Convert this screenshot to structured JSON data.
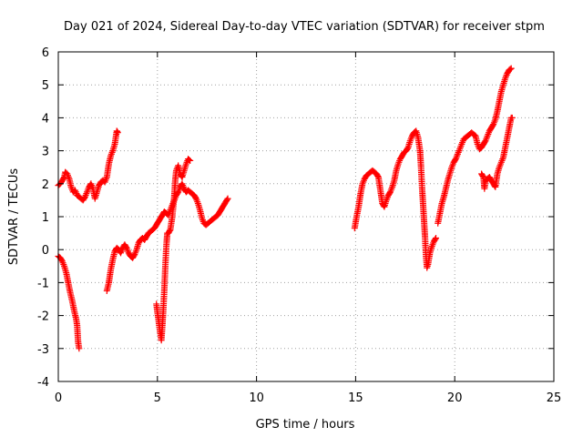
{
  "chart_data": {
    "type": "scatter",
    "title": "Day 021 of 2024, Sidereal Day-to-day VTEC variation (SDTVAR) for receiver stpm",
    "xlabel": "GPS time / hours",
    "ylabel": "SDTVAR / TECUs",
    "xlim": [
      0,
      25
    ],
    "ylim": [
      -4,
      6
    ],
    "xticks": [
      "0",
      "5",
      "10",
      "15",
      "20",
      "25"
    ],
    "yticks": [
      "-4",
      "-3",
      "-2",
      "-1",
      "0",
      "1",
      "2",
      "3",
      "4",
      "5",
      "6"
    ],
    "grid": true,
    "marker": "+",
    "color": "#ff0000",
    "series": [
      {
        "segments": [
          [
            [
              0.0,
              1.95
            ],
            [
              0.1,
              2.0
            ],
            [
              0.2,
              2.1
            ],
            [
              0.3,
              2.2
            ],
            [
              0.35,
              2.35
            ],
            [
              0.45,
              2.3
            ],
            [
              0.55,
              2.15
            ],
            [
              0.65,
              1.9
            ],
            [
              0.75,
              1.75
            ],
            [
              0.85,
              1.8
            ],
            [
              0.95,
              1.65
            ],
            [
              1.05,
              1.6
            ],
            [
              1.15,
              1.55
            ],
            [
              1.25,
              1.5
            ],
            [
              1.35,
              1.6
            ],
            [
              1.45,
              1.75
            ],
            [
              1.55,
              1.9
            ],
            [
              1.65,
              2.0
            ],
            [
              1.75,
              1.85
            ],
            [
              1.85,
              1.55
            ],
            [
              1.95,
              1.75
            ],
            [
              2.05,
              1.95
            ],
            [
              2.15,
              2.05
            ],
            [
              2.25,
              2.1
            ],
            [
              2.35,
              2.05
            ],
            [
              2.45,
              2.2
            ],
            [
              2.55,
              2.6
            ],
            [
              2.65,
              2.85
            ],
            [
              2.75,
              3.0
            ],
            [
              2.85,
              3.2
            ],
            [
              2.9,
              3.4
            ],
            [
              2.95,
              3.6
            ],
            [
              3.0,
              3.55
            ]
          ],
          [
            [
              0.0,
              -0.2
            ],
            [
              0.1,
              -0.25
            ],
            [
              0.2,
              -0.35
            ],
            [
              0.3,
              -0.5
            ],
            [
              0.4,
              -0.7
            ],
            [
              0.5,
              -1.0
            ],
            [
              0.6,
              -1.3
            ],
            [
              0.7,
              -1.55
            ],
            [
              0.8,
              -1.85
            ],
            [
              0.9,
              -2.1
            ],
            [
              0.95,
              -2.3
            ],
            [
              1.0,
              -2.8
            ],
            [
              1.05,
              -3.0
            ]
          ],
          [
            [
              2.45,
              -1.25
            ],
            [
              2.55,
              -1.0
            ],
            [
              2.65,
              -0.6
            ],
            [
              2.75,
              -0.3
            ],
            [
              2.85,
              -0.05
            ],
            [
              2.95,
              0.05
            ],
            [
              3.05,
              0.0
            ],
            [
              3.15,
              -0.1
            ],
            [
              3.25,
              0.05
            ],
            [
              3.35,
              0.15
            ],
            [
              3.45,
              0.05
            ],
            [
              3.55,
              -0.1
            ],
            [
              3.65,
              -0.2
            ],
            [
              3.75,
              -0.25
            ],
            [
              3.85,
              -0.15
            ],
            [
              3.95,
              0.0
            ],
            [
              4.05,
              0.2
            ],
            [
              4.15,
              0.3
            ],
            [
              4.25,
              0.35
            ],
            [
              4.35,
              0.3
            ],
            [
              4.45,
              0.4
            ],
            [
              4.55,
              0.5
            ],
            [
              4.65,
              0.55
            ],
            [
              4.75,
              0.6
            ],
            [
              4.85,
              0.65
            ],
            [
              4.95,
              0.75
            ],
            [
              5.05,
              0.85
            ],
            [
              5.15,
              0.95
            ],
            [
              5.25,
              1.05
            ],
            [
              5.35,
              1.15
            ],
            [
              5.45,
              1.1
            ],
            [
              5.55,
              1.05
            ],
            [
              5.65,
              1.2
            ],
            [
              5.75,
              1.35
            ],
            [
              5.85,
              1.5
            ],
            [
              5.95,
              1.65
            ],
            [
              6.05,
              1.75
            ],
            [
              6.15,
              1.9
            ],
            [
              6.25,
              2.0
            ],
            [
              6.35,
              1.85
            ],
            [
              6.45,
              1.75
            ],
            [
              6.55,
              1.8
            ],
            [
              6.65,
              1.75
            ],
            [
              6.75,
              1.7
            ],
            [
              6.85,
              1.65
            ],
            [
              6.95,
              1.55
            ],
            [
              7.05,
              1.4
            ],
            [
              7.15,
              1.2
            ],
            [
              7.25,
              0.95
            ],
            [
              7.35,
              0.8
            ],
            [
              7.45,
              0.75
            ],
            [
              7.55,
              0.8
            ],
            [
              7.65,
              0.85
            ],
            [
              7.75,
              0.9
            ],
            [
              7.85,
              0.95
            ],
            [
              7.95,
              1.0
            ],
            [
              8.05,
              1.05
            ],
            [
              8.15,
              1.15
            ],
            [
              8.25,
              1.25
            ],
            [
              8.35,
              1.35
            ],
            [
              8.45,
              1.45
            ],
            [
              8.55,
              1.55
            ]
          ],
          [
            [
              4.95,
              -1.65
            ],
            [
              5.0,
              -1.9
            ],
            [
              5.05,
              -2.1
            ],
            [
              5.1,
              -2.35
            ],
            [
              5.15,
              -2.55
            ],
            [
              5.2,
              -2.75
            ],
            [
              5.25,
              -2.3
            ],
            [
              5.3,
              -1.8
            ],
            [
              5.35,
              -1.2
            ],
            [
              5.4,
              -0.5
            ],
            [
              5.45,
              0.1
            ],
            [
              5.5,
              0.5
            ],
            [
              5.55,
              0.5
            ],
            [
              5.65,
              0.6
            ],
            [
              5.75,
              1.0
            ],
            [
              5.85,
              1.6
            ],
            [
              5.9,
              2.1
            ],
            [
              5.95,
              2.4
            ],
            [
              6.05,
              2.55
            ],
            [
              6.15,
              2.3
            ],
            [
              6.25,
              2.2
            ],
            [
              6.35,
              2.4
            ],
            [
              6.45,
              2.6
            ],
            [
              6.55,
              2.75
            ],
            [
              6.65,
              2.7
            ]
          ],
          [
            [
              14.95,
              0.65
            ],
            [
              15.05,
              1.0
            ],
            [
              15.15,
              1.3
            ],
            [
              15.25,
              1.7
            ],
            [
              15.35,
              2.0
            ],
            [
              15.45,
              2.15
            ],
            [
              15.55,
              2.25
            ],
            [
              15.65,
              2.3
            ],
            [
              15.75,
              2.35
            ],
            [
              15.85,
              2.4
            ],
            [
              15.95,
              2.35
            ],
            [
              16.05,
              2.3
            ],
            [
              16.15,
              2.2
            ],
            [
              16.25,
              1.8
            ],
            [
              16.35,
              1.4
            ],
            [
              16.45,
              1.3
            ],
            [
              16.55,
              1.5
            ],
            [
              16.65,
              1.65
            ],
            [
              16.75,
              1.75
            ],
            [
              16.85,
              1.9
            ],
            [
              16.95,
              2.1
            ],
            [
              17.05,
              2.4
            ],
            [
              17.15,
              2.6
            ],
            [
              17.25,
              2.75
            ],
            [
              17.35,
              2.85
            ],
            [
              17.45,
              2.95
            ],
            [
              17.55,
              3.0
            ],
            [
              17.65,
              3.1
            ],
            [
              17.75,
              3.3
            ],
            [
              17.85,
              3.45
            ],
            [
              17.95,
              3.55
            ],
            [
              18.05,
              3.6
            ],
            [
              18.15,
              3.4
            ],
            [
              18.25,
              3.0
            ],
            [
              18.3,
              2.5
            ],
            [
              18.35,
              1.9
            ],
            [
              18.4,
              1.4
            ],
            [
              18.45,
              0.9
            ],
            [
              18.5,
              0.4
            ],
            [
              18.55,
              -0.2
            ],
            [
              18.6,
              -0.55
            ],
            [
              18.65,
              -0.45
            ],
            [
              18.75,
              -0.1
            ],
            [
              18.85,
              0.1
            ],
            [
              18.95,
              0.25
            ],
            [
              19.05,
              0.35
            ]
          ],
          [
            [
              19.15,
              0.8
            ],
            [
              19.25,
              1.1
            ],
            [
              19.35,
              1.4
            ],
            [
              19.45,
              1.6
            ],
            [
              19.55,
              1.85
            ],
            [
              19.65,
              2.1
            ],
            [
              19.75,
              2.3
            ],
            [
              19.85,
              2.5
            ],
            [
              19.95,
              2.65
            ],
            [
              20.05,
              2.75
            ],
            [
              20.15,
              2.9
            ],
            [
              20.25,
              3.05
            ],
            [
              20.35,
              3.2
            ],
            [
              20.45,
              3.35
            ],
            [
              20.55,
              3.4
            ],
            [
              20.65,
              3.45
            ],
            [
              20.75,
              3.5
            ],
            [
              20.85,
              3.55
            ],
            [
              20.95,
              3.5
            ],
            [
              21.05,
              3.45
            ],
            [
              21.15,
              3.2
            ],
            [
              21.25,
              3.05
            ],
            [
              21.35,
              3.1
            ],
            [
              21.45,
              3.2
            ],
            [
              21.55,
              3.3
            ],
            [
              21.65,
              3.45
            ],
            [
              21.75,
              3.6
            ],
            [
              21.85,
              3.7
            ],
            [
              21.95,
              3.8
            ],
            [
              22.05,
              3.95
            ],
            [
              22.15,
              4.2
            ],
            [
              22.25,
              4.5
            ],
            [
              22.35,
              4.8
            ],
            [
              22.45,
              5.0
            ],
            [
              22.55,
              5.2
            ],
            [
              22.65,
              5.35
            ],
            [
              22.75,
              5.45
            ],
            [
              22.85,
              5.5
            ]
          ],
          [
            [
              21.35,
              2.3
            ],
            [
              21.45,
              2.2
            ],
            [
              21.5,
              1.85
            ],
            [
              21.55,
              2.1
            ],
            [
              21.65,
              2.15
            ],
            [
              21.75,
              2.2
            ],
            [
              21.85,
              2.1
            ],
            [
              21.95,
              2.0
            ],
            [
              22.05,
              1.9
            ],
            [
              22.15,
              2.3
            ],
            [
              22.25,
              2.5
            ],
            [
              22.35,
              2.65
            ],
            [
              22.45,
              2.8
            ],
            [
              22.55,
              3.1
            ],
            [
              22.65,
              3.4
            ],
            [
              22.75,
              3.7
            ],
            [
              22.85,
              4.0
            ],
            [
              22.9,
              4.0
            ]
          ]
        ]
      }
    ]
  }
}
